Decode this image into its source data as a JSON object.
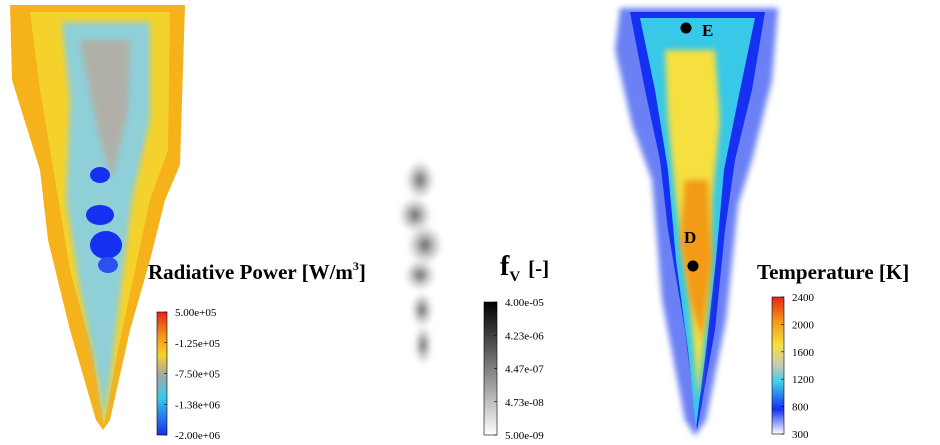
{
  "panels": [
    {
      "title": "Radiative Power [W/m",
      "title_sup": "3",
      "title_end": "]",
      "ticks": [
        "5.00e+05",
        "-1.25e+05",
        "-7.50e+05",
        "-1.38e+06",
        "-2.00e+06"
      ]
    },
    {
      "title": "f",
      "title_sub": "V",
      "title_end": "[-]",
      "ticks": [
        "4.00e-05",
        "4.23e-06",
        "4.47e-07",
        "4.73e-08",
        "5.00e-09"
      ]
    },
    {
      "title": "Temperature [K]",
      "ticks": [
        "2400",
        "2000",
        "1600",
        "1200",
        "800",
        "300"
      ],
      "points": [
        "E",
        "D"
      ]
    }
  ]
}
